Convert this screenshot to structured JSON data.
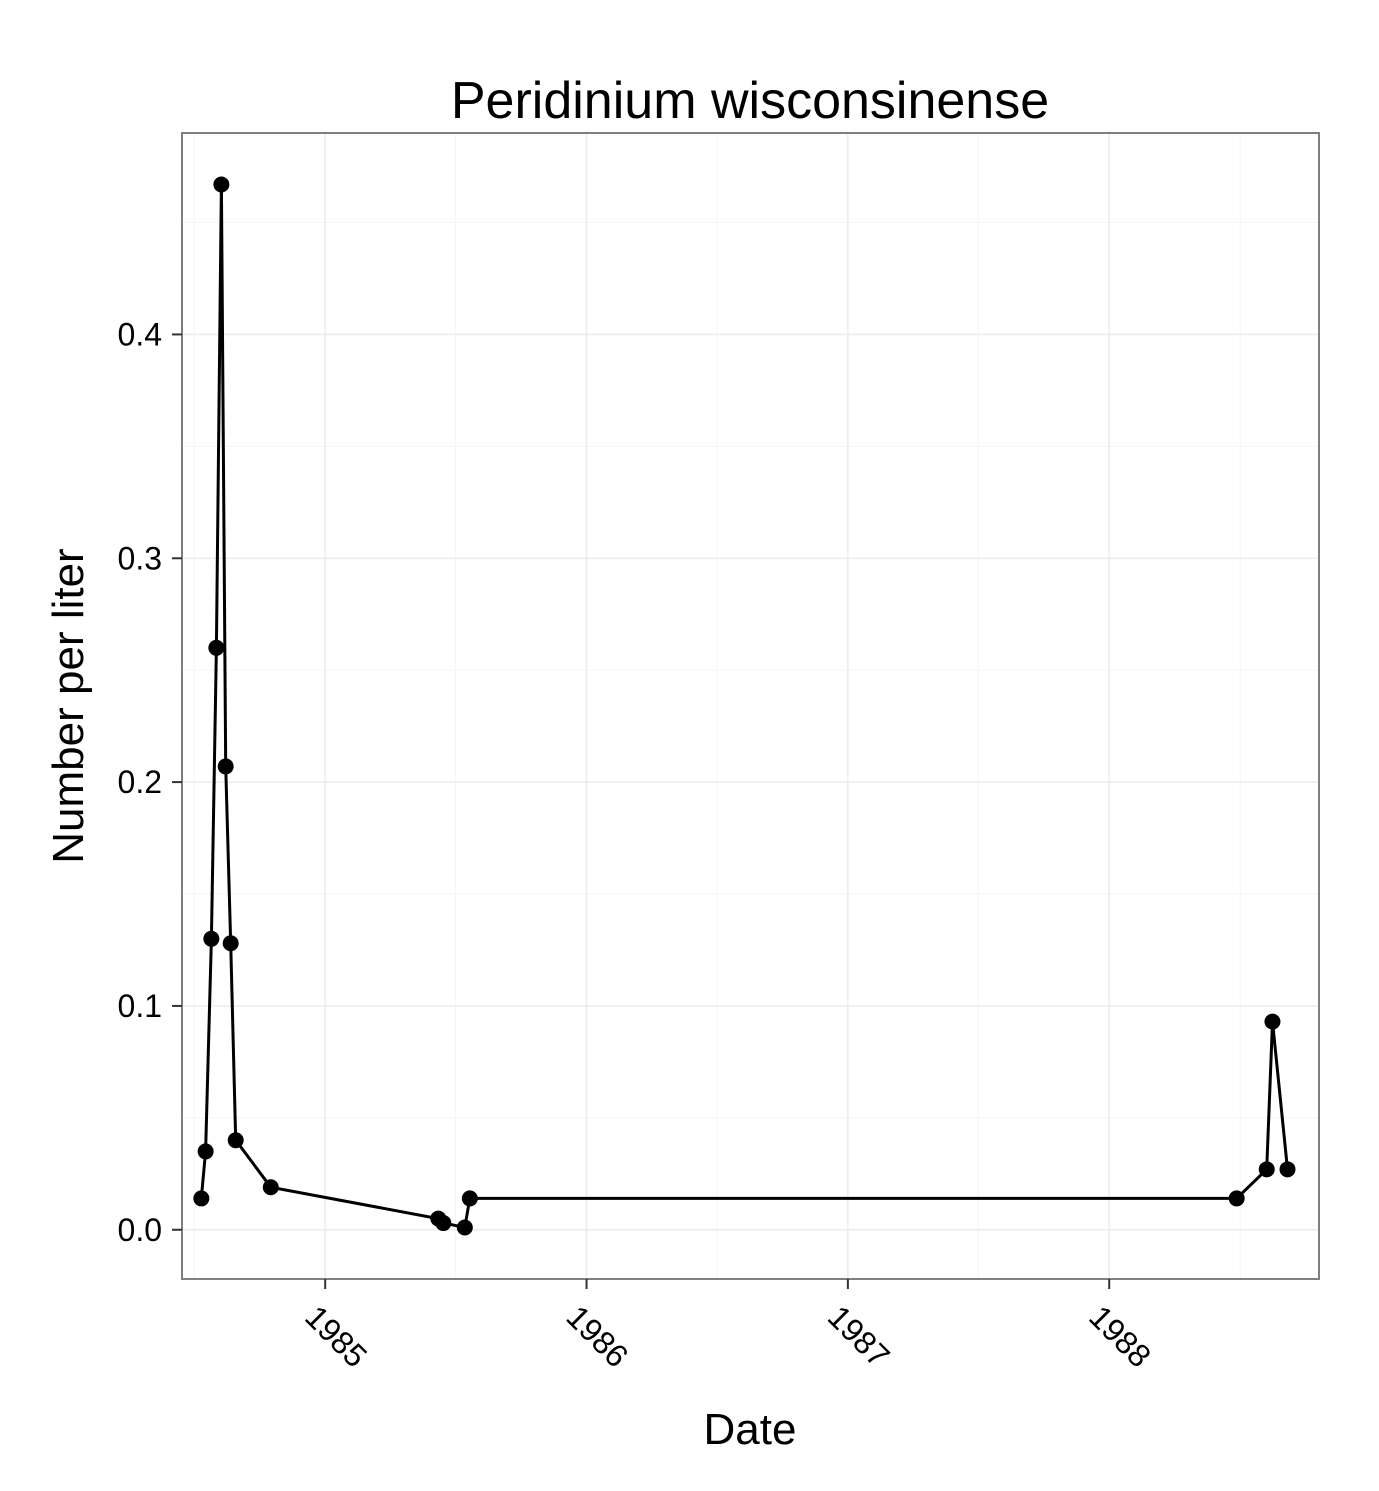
{
  "chart_data": {
    "type": "line",
    "title": "Peridinium wisconsinense",
    "xlabel": "Date",
    "ylabel": "Number per liter",
    "x_tick_labels": [
      "1985",
      "1986",
      "1987",
      "1988"
    ],
    "y_tick_labels": [
      "0.0",
      "0.1",
      "0.2",
      "0.3",
      "0.4"
    ],
    "xlim": [
      "1984-06-15",
      "1988-10-20"
    ],
    "ylim": [
      -0.022,
      0.49
    ],
    "grid": true,
    "legend": "none",
    "series": [
      {
        "color": "#000000",
        "points": [
          {
            "x": "1984-07-12",
            "y": 0.014
          },
          {
            "x": "1984-07-18",
            "y": 0.035
          },
          {
            "x": "1984-07-26",
            "y": 0.13
          },
          {
            "x": "1984-08-02",
            "y": 0.26
          },
          {
            "x": "1984-08-09",
            "y": 0.467
          },
          {
            "x": "1984-08-15",
            "y": 0.207
          },
          {
            "x": "1984-08-22",
            "y": 0.128
          },
          {
            "x": "1984-08-29",
            "y": 0.04
          },
          {
            "x": "1984-10-17",
            "y": 0.019
          },
          {
            "x": "1985-06-08",
            "y": 0.005
          },
          {
            "x": "1985-06-15",
            "y": 0.003
          },
          {
            "x": "1985-07-15",
            "y": 0.001
          },
          {
            "x": "1985-07-22",
            "y": 0.014
          },
          {
            "x": "1988-06-27",
            "y": 0.014
          },
          {
            "x": "1988-08-08",
            "y": 0.027
          },
          {
            "x": "1988-08-16",
            "y": 0.093
          },
          {
            "x": "1988-09-06",
            "y": 0.027
          }
        ]
      }
    ]
  }
}
